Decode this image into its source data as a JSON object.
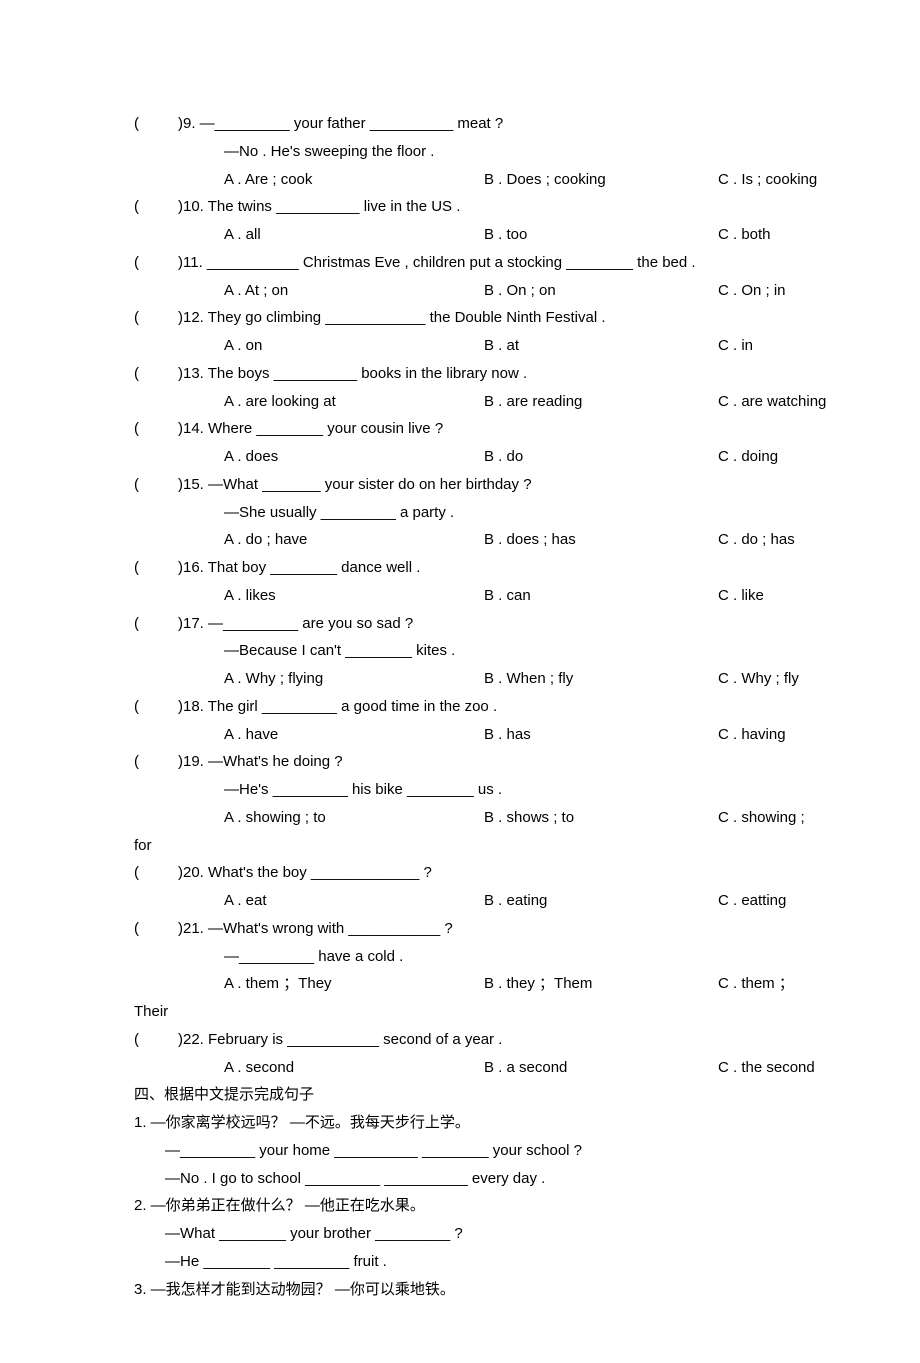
{
  "questions": [
    {
      "num": "9",
      "stem": "—_________ your father __________ meat ?",
      "cont": "—No . He's sweeping the floor .",
      "a": "A . Are ; cook",
      "b": "B . Does ; cooking",
      "c": "C . Is ; cooking"
    },
    {
      "num": "10",
      "stem": "The twins __________ live in the US .",
      "a": "A . all",
      "b": "B . too",
      "c": "C . both"
    },
    {
      "num": "11",
      "stem": "___________ Christmas Eve , children put a stocking ________ the bed .",
      "a": "A . At ; on",
      "b": "B . On ; on",
      "c": "C . On ; in"
    },
    {
      "num": "12",
      "stem": "They go climbing ____________ the Double Ninth Festival .",
      "a": "A . on",
      "b": "B . at",
      "c": "C . in"
    },
    {
      "num": "13",
      "stem": "The boys __________ books in the library now .",
      "a": "A . are looking at",
      "b": "B . are reading",
      "c": "C . are watching"
    },
    {
      "num": "14",
      "stem": "Where ________ your cousin live ?",
      "a": "A . does",
      "b": "B . do",
      "c": "C . doing"
    },
    {
      "num": "15",
      "stem": "—What _______ your sister do on her birthday ?",
      "cont": "—She usually _________ a party .",
      "a": "A . do ; have",
      "b": "B . does ; has",
      "c": "C . do ; has"
    },
    {
      "num": "16",
      "stem": "That boy ________ dance well .",
      "a": "A . likes",
      "b": "B . can",
      "c": "C . like"
    },
    {
      "num": "17",
      "stem": "—_________ are you so sad ?",
      "cont": "—Because I can't ________ kites .",
      "a": "A . Why ; flying",
      "b": "B . When ; fly",
      "c": "C . Why ; fly"
    },
    {
      "num": "18",
      "stem": "The girl _________ a good time in the zoo .",
      "a": "A . have",
      "b": "B . has",
      "c": "C . having"
    },
    {
      "num": "19",
      "stem": "—What's he doing ?",
      "cont": "—He's _________ his bike ________ us .",
      "a": "A . showing ; to",
      "b": "B . shows ; to",
      "c": "C . showing ;",
      "wrapTail": "for"
    },
    {
      "num": "20",
      "stem": "What's the boy _____________ ?",
      "a": "A . eat",
      "b": "B . eating",
      "c": "C . eatting"
    },
    {
      "num": "21",
      "stem": "—What's wrong with ___________ ?",
      "cont": "—_________ have a cold .",
      "a": "A .  them ；They",
      "b": "B .  they ；Them",
      "c": "C .  them ；",
      "wrapTail": "Their"
    },
    {
      "num": "22",
      "stem": "February is ___________ second of a year .",
      "a": "A . second",
      "b": "B . a second",
      "c": "C . the second"
    }
  ],
  "paren_open": "(",
  "paren_close": ")",
  "dot": ". ",
  "section4_title": "四、根据中文提示完成句子",
  "sentences": [
    {
      "num": "1. ",
      "cn": "—你家离学校远吗？    —不远。我每天步行上学。",
      "lines": [
        "—_________ your home __________ ________ your school ?",
        "—No . I go to school _________ __________ every day ."
      ]
    },
    {
      "num": "2. ",
      "cn": "—你弟弟正在做什么？   —他正在吃水果。",
      "lines": [
        "—What ________ your brother _________ ?",
        "—He ________ _________ fruit ."
      ]
    },
    {
      "num": "3. ",
      "cn": "—我怎样才能到达动物园？   —你可以乘地铁。",
      "lines": []
    }
  ]
}
